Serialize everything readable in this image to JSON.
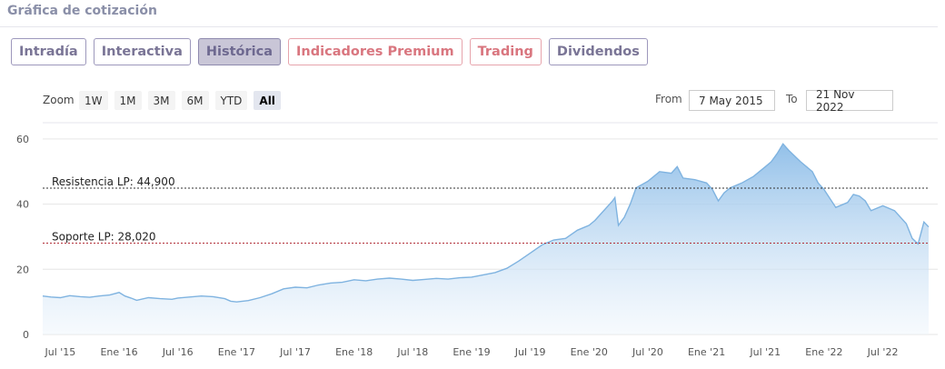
{
  "header": {
    "title": "Gráfica de cotización"
  },
  "tabs": [
    {
      "label": "Intradía",
      "variant": "default"
    },
    {
      "label": "Interactiva",
      "variant": "default"
    },
    {
      "label": "Histórica",
      "variant": "active"
    },
    {
      "label": "Indicadores Premium",
      "variant": "premium"
    },
    {
      "label": "Trading",
      "variant": "premium"
    },
    {
      "label": "Dividendos",
      "variant": "default"
    }
  ],
  "zoom": {
    "label": "Zoom",
    "options": [
      "1W",
      "1M",
      "3M",
      "6M",
      "YTD",
      "All"
    ],
    "selected": "All"
  },
  "range": {
    "from_label": "From",
    "from_value": "7 May 2015",
    "to_label": "To",
    "to_value": "21 Nov 2022"
  },
  "colors": {
    "line": "#7fb3e0",
    "area_top": "#8dbde8",
    "area_bottom": "#eef5fc",
    "resistance": "#333333",
    "support": "#b2303a"
  },
  "chart_data": {
    "type": "area",
    "xlabel": "",
    "ylabel": "",
    "ylim": [
      0,
      65
    ],
    "yticks": [
      0,
      20,
      40,
      60
    ],
    "xlim": [
      2015.35,
      2022.89
    ],
    "xticks": [
      {
        "x": 2015.5,
        "label": "Jul '15"
      },
      {
        "x": 2016.0,
        "label": "Ene '16"
      },
      {
        "x": 2016.5,
        "label": "Jul '16"
      },
      {
        "x": 2017.0,
        "label": "Ene '17"
      },
      {
        "x": 2017.5,
        "label": "Jul '17"
      },
      {
        "x": 2018.0,
        "label": "Ene '18"
      },
      {
        "x": 2018.5,
        "label": "Jul '18"
      },
      {
        "x": 2019.0,
        "label": "Ene '19"
      },
      {
        "x": 2019.5,
        "label": "Jul '19"
      },
      {
        "x": 2020.0,
        "label": "Ene '20"
      },
      {
        "x": 2020.5,
        "label": "Jul '20"
      },
      {
        "x": 2021.0,
        "label": "Ene '21"
      },
      {
        "x": 2021.5,
        "label": "Jul '21"
      },
      {
        "x": 2022.0,
        "label": "Ene '22"
      },
      {
        "x": 2022.5,
        "label": "Jul '22"
      }
    ],
    "grid": true,
    "levels": [
      {
        "label": "Resistencia LP: 44,900",
        "value": 44.9,
        "style": "resistance"
      },
      {
        "label": "Soporte LP: 28,020",
        "value": 28.02,
        "style": "support"
      }
    ],
    "series": [
      {
        "x": [
          2015.35,
          2015.42,
          2015.5,
          2015.58,
          2015.67,
          2015.75,
          2015.83,
          2015.92,
          2016.0,
          2016.05,
          2016.1,
          2016.15,
          2016.25,
          2016.35,
          2016.45,
          2016.5,
          2016.6,
          2016.7,
          2016.8,
          2016.9,
          2016.95,
          2017.0,
          2017.1,
          2017.2,
          2017.3,
          2017.4,
          2017.5,
          2017.6,
          2017.7,
          2017.8,
          2017.9,
          2018.0,
          2018.1,
          2018.2,
          2018.3,
          2018.4,
          2018.5,
          2018.6,
          2018.7,
          2018.8,
          2018.9,
          2019.0,
          2019.1,
          2019.2,
          2019.3,
          2019.4,
          2019.5,
          2019.6,
          2019.7,
          2019.8,
          2019.9,
          2020.0,
          2020.05,
          2020.1,
          2020.15,
          2020.2,
          2020.22,
          2020.25,
          2020.3,
          2020.35,
          2020.4,
          2020.5,
          2020.6,
          2020.7,
          2020.75,
          2020.8,
          2020.9,
          2021.0,
          2021.05,
          2021.1,
          2021.15,
          2021.2,
          2021.3,
          2021.4,
          2021.5,
          2021.55,
          2021.6,
          2021.65,
          2021.7,
          2021.8,
          2021.9,
          2021.95,
          2022.0,
          2022.1,
          2022.2,
          2022.25,
          2022.3,
          2022.35,
          2022.4,
          2022.5,
          2022.6,
          2022.7,
          2022.75,
          2022.8,
          2022.85,
          2022.89
        ],
        "values": [
          11.8,
          11.5,
          11.3,
          11.9,
          11.6,
          11.4,
          11.8,
          12.1,
          12.9,
          11.8,
          11.2,
          10.5,
          11.3,
          11.0,
          10.8,
          11.2,
          11.5,
          11.8,
          11.6,
          11.0,
          10.2,
          10.0,
          10.4,
          11.3,
          12.5,
          14.0,
          14.5,
          14.3,
          15.2,
          15.8,
          16.0,
          16.8,
          16.5,
          17.0,
          17.3,
          17.0,
          16.6,
          16.9,
          17.2,
          17.0,
          17.4,
          17.6,
          18.3,
          19.0,
          20.3,
          22.5,
          25.0,
          27.5,
          29.0,
          29.5,
          32.0,
          33.5,
          35.0,
          37.0,
          39.0,
          41.0,
          42.0,
          33.5,
          36.0,
          40.0,
          45.0,
          47.0,
          50.0,
          49.5,
          51.5,
          48.0,
          47.5,
          46.5,
          44.5,
          41.0,
          43.5,
          45.0,
          46.5,
          48.5,
          51.5,
          53.0,
          55.5,
          58.5,
          56.5,
          53.0,
          50.0,
          46.5,
          44.5,
          39.0,
          40.5,
          43.0,
          42.5,
          41.0,
          38.0,
          39.5,
          38.0,
          34.0,
          29.5,
          27.8,
          34.5,
          33.0
        ]
      }
    ]
  }
}
